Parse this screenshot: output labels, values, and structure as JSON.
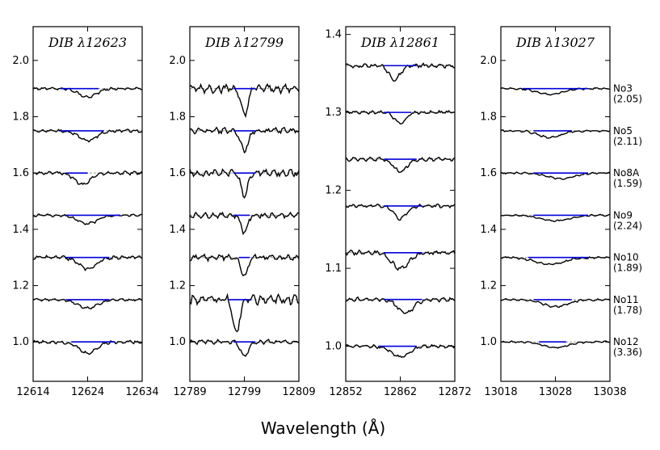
{
  "colors": {
    "spectrum": "#000000",
    "continuum_fit": "#0000dd",
    "reference_line": "#999999",
    "frame": "#000000"
  },
  "figure": {
    "xlabel": "Wavelength (Å)"
  },
  "chart_data": [
    {
      "type": "line",
      "title": "DIB λ12623",
      "xlim": [
        12614,
        12634
      ],
      "ylim": [
        0.86,
        2.12
      ],
      "xticks": [
        12614,
        12624,
        12634
      ],
      "yticks": [
        1.0,
        1.2,
        1.4,
        1.6,
        1.8,
        2.0
      ],
      "ytick_labels": [
        "1.0",
        "1.2",
        "1.4",
        "1.6",
        "1.8",
        "2.0"
      ],
      "series": [
        {
          "offset": 1.9,
          "depth": 0.03,
          "width": 1.6,
          "center": 12624,
          "fit": [
            12619,
            12626
          ]
        },
        {
          "offset": 1.75,
          "depth": 0.035,
          "width": 1.6,
          "center": 12624,
          "fit": [
            12619,
            12627
          ]
        },
        {
          "offset": 1.6,
          "depth": 0.04,
          "width": 1.4,
          "center": 12623,
          "fit": [
            12620,
            12624
          ]
        },
        {
          "offset": 1.45,
          "depth": 0.03,
          "width": 1.8,
          "center": 12624,
          "fit": [
            12620,
            12630
          ]
        },
        {
          "offset": 1.3,
          "depth": 0.04,
          "width": 1.6,
          "center": 12624,
          "fit": [
            12620,
            12628
          ]
        },
        {
          "offset": 1.15,
          "depth": 0.03,
          "width": 1.8,
          "center": 12624,
          "fit": [
            12620,
            12628
          ]
        },
        {
          "offset": 1.0,
          "depth": 0.04,
          "width": 1.6,
          "center": 12624,
          "fit": [
            12621,
            12629
          ]
        }
      ]
    },
    {
      "type": "line",
      "title": "DIB λ12799",
      "xlim": [
        12789,
        12809
      ],
      "ylim": [
        0.86,
        2.12
      ],
      "xticks": [
        12789,
        12799,
        12809
      ],
      "yticks": [
        1.0,
        1.2,
        1.4,
        1.6,
        1.8,
        2.0
      ],
      "ytick_labels": [
        "1.0",
        "1.2",
        "1.4",
        "1.6",
        "1.8",
        "2.0"
      ],
      "series": [
        {
          "offset": 1.9,
          "depth": 0.1,
          "width": 0.6,
          "center": 12799,
          "fit": [
            12797,
            12801
          ]
        },
        {
          "offset": 1.75,
          "depth": 0.07,
          "width": 0.7,
          "center": 12799,
          "fit": [
            12797,
            12801
          ]
        },
        {
          "offset": 1.6,
          "depth": 0.08,
          "width": 0.6,
          "center": 12799,
          "fit": [
            12797,
            12801
          ]
        },
        {
          "offset": 1.45,
          "depth": 0.06,
          "width": 0.6,
          "center": 12799,
          "fit": [
            12797,
            12800
          ]
        },
        {
          "offset": 1.3,
          "depth": 0.07,
          "width": 0.6,
          "center": 12799,
          "fit": [
            12798,
            12800
          ]
        },
        {
          "offset": 1.15,
          "depth": 0.12,
          "width": 0.6,
          "center": 12797.5,
          "fit": [
            12796,
            12800
          ]
        },
        {
          "offset": 1.0,
          "depth": 0.05,
          "width": 0.7,
          "center": 12799,
          "fit": [
            12797,
            12801
          ]
        }
      ]
    },
    {
      "type": "line",
      "title": "DIB λ12861",
      "xlim": [
        12852,
        12872
      ],
      "ylim": [
        0.955,
        1.41
      ],
      "xticks": [
        12852,
        12862,
        12872
      ],
      "yticks": [
        1.0,
        1.1,
        1.2,
        1.3,
        1.4
      ],
      "ytick_labels": [
        "1.0",
        "1.1",
        "1.2",
        "1.3",
        "1.4"
      ],
      "series": [
        {
          "offset": 1.36,
          "depth": 0.018,
          "width": 1.0,
          "center": 12861,
          "fit": [
            12859,
            12865
          ]
        },
        {
          "offset": 1.3,
          "depth": 0.014,
          "width": 1.0,
          "center": 12862,
          "fit": [
            12859,
            12864
          ]
        },
        {
          "offset": 1.24,
          "depth": 0.016,
          "width": 1.2,
          "center": 12862,
          "fit": [
            12859,
            12865
          ]
        },
        {
          "offset": 1.18,
          "depth": 0.016,
          "width": 1.2,
          "center": 12862,
          "fit": [
            12859,
            12866
          ]
        },
        {
          "offset": 1.12,
          "depth": 0.02,
          "width": 1.6,
          "center": 12862,
          "fit": [
            12859,
            12866
          ]
        },
        {
          "offset": 1.06,
          "depth": 0.018,
          "width": 1.4,
          "center": 12863,
          "fit": [
            12859,
            12866
          ]
        },
        {
          "offset": 1.0,
          "depth": 0.014,
          "width": 1.6,
          "center": 12862,
          "fit": [
            12858,
            12865
          ]
        }
      ]
    },
    {
      "type": "line",
      "title": "DIB λ13027",
      "xlim": [
        13018,
        13038
      ],
      "ylim": [
        0.86,
        2.12
      ],
      "xticks": [
        13018,
        13028,
        13038
      ],
      "yticks": [
        1.0,
        1.2,
        1.4,
        1.6,
        1.8,
        2.0
      ],
      "ytick_labels": [
        "1.0",
        "1.2",
        "1.4",
        "1.6",
        "1.8",
        "2.0"
      ],
      "series": [
        {
          "offset": 1.9,
          "depth": 0.02,
          "width": 2.4,
          "center": 13027,
          "fit": [
            13022,
            13034
          ]
        },
        {
          "offset": 1.75,
          "depth": 0.025,
          "width": 2.0,
          "center": 13027,
          "fit": [
            13024,
            13031
          ]
        },
        {
          "offset": 1.6,
          "depth": 0.02,
          "width": 2.4,
          "center": 13029,
          "fit": [
            13024,
            13034
          ]
        },
        {
          "offset": 1.45,
          "depth": 0.02,
          "width": 2.6,
          "center": 13028,
          "fit": [
            13024,
            13034
          ]
        },
        {
          "offset": 1.3,
          "depth": 0.025,
          "width": 2.6,
          "center": 13027,
          "fit": [
            13023,
            13034
          ]
        },
        {
          "offset": 1.15,
          "depth": 0.025,
          "width": 2.2,
          "center": 13028,
          "fit": [
            13024,
            13031
          ]
        },
        {
          "offset": 1.0,
          "depth": 0.02,
          "width": 2.2,
          "center": 13028,
          "fit": [
            13025,
            13030
          ]
        }
      ]
    }
  ],
  "stars": [
    {
      "name": "No3",
      "value": "(2.05)"
    },
    {
      "name": "No5",
      "value": "(2.11)"
    },
    {
      "name": "No8A",
      "value": "(1.59)"
    },
    {
      "name": "No9",
      "value": "(2.24)"
    },
    {
      "name": "No10",
      "value": "(1.89)"
    },
    {
      "name": "No11",
      "value": "(1.78)"
    },
    {
      "name": "No12",
      "value": "(3.36)"
    }
  ]
}
